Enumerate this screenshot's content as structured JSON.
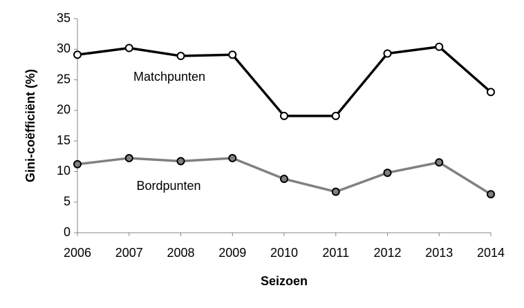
{
  "chart_data": {
    "type": "line",
    "x_label": "Seizoen",
    "y_label": "Gini-coëfficiënt (%)",
    "x": [
      2006,
      2007,
      2008,
      2009,
      2010,
      2011,
      2012,
      2013,
      2014
    ],
    "xlim": [
      2006,
      2014
    ],
    "xticks": [
      2006,
      2007,
      2008,
      2009,
      2010,
      2011,
      2012,
      2013,
      2014
    ],
    "ylim": [
      0,
      35
    ],
    "yticks": [
      0,
      5,
      10,
      15,
      20,
      25,
      30,
      35
    ],
    "grid": false,
    "series": [
      {
        "name": "Matchpunten",
        "color": "#000000",
        "marker_fill": "#ffffff",
        "values": [
          29.1,
          30.2,
          28.9,
          29.1,
          19.1,
          19.1,
          29.3,
          30.4,
          23.0
        ]
      },
      {
        "name": "Bordpunten",
        "color": "#808080",
        "marker_fill": "#808080",
        "values": [
          11.2,
          12.2,
          11.7,
          12.2,
          8.8,
          6.7,
          9.8,
          11.5,
          6.3
        ]
      }
    ]
  }
}
